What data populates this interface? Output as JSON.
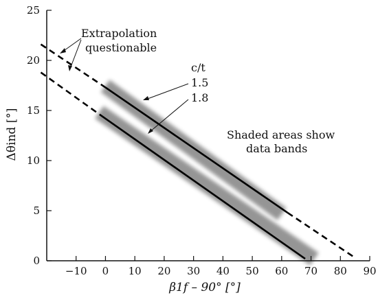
{
  "chart_data": {
    "type": "line",
    "xlabel": "β1f – 90° [°]",
    "ylabel": "Δθind [°]",
    "xlim": [
      -20,
      90
    ],
    "ylim": [
      0,
      25
    ],
    "x_ticks": [
      -10,
      0,
      10,
      20,
      30,
      40,
      50,
      60,
      70,
      80,
      90
    ],
    "x_tick_labels": [
      "−10",
      "0",
      "10",
      "20",
      "30",
      "40",
      "50",
      "60",
      "70",
      "80",
      "90"
    ],
    "y_ticks": [
      0,
      5,
      10,
      15,
      20,
      25
    ],
    "y_tick_labels": [
      "0",
      "5",
      "10",
      "15",
      "20",
      "25"
    ],
    "grid": false,
    "series": [
      {
        "name": "1.5",
        "solid": [
          [
            0,
            17.3
          ],
          [
            62,
            4.8
          ]
        ],
        "dashed_left": [
          [
            -22,
            21.6
          ],
          [
            0,
            17.3
          ]
        ],
        "dashed_right": [
          [
            62,
            4.8
          ],
          [
            85,
            0.3
          ]
        ],
        "band": [
          [
            2,
            17.0
          ],
          [
            58,
            5.1
          ]
        ],
        "color": "#000000"
      },
      {
        "name": "1.8",
        "solid": [
          [
            -2,
            14.6
          ],
          [
            68,
            0.2
          ]
        ],
        "dashed_left": [
          [
            -22,
            18.8
          ],
          [
            -2,
            14.6
          ]
        ],
        "band": [
          [
            0,
            14.4
          ],
          [
            69,
            0.6
          ]
        ],
        "color": "#000000"
      }
    ],
    "band_color": "#8a8a8a",
    "annotations": {
      "legend_title": "c/t",
      "legend_items": [
        "1.5",
        "1.8"
      ],
      "extrapolation_line1": "Extrapolation",
      "extrapolation_line2": "questionable",
      "shaded_line1": "Shaded areas show",
      "shaded_line2": "data bands"
    }
  }
}
